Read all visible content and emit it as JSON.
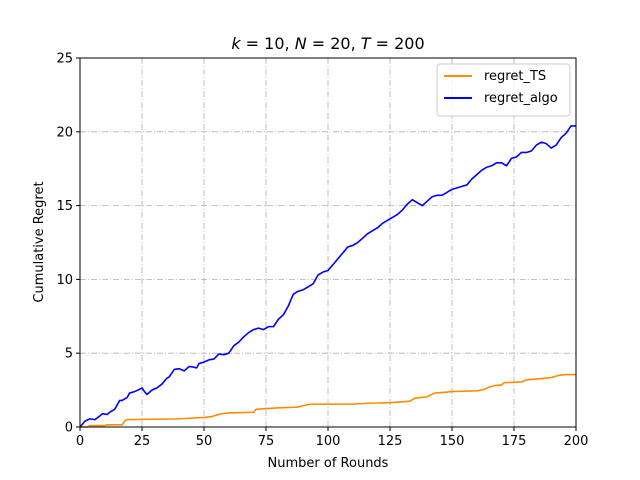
{
  "chart_data": {
    "type": "line",
    "title": "k = 10, N = 20, T = 200",
    "title_parts": {
      "k": "k",
      "k_eq": " = 10, ",
      "N": "N",
      "N_eq": " = 20, ",
      "T": "T",
      "T_eq": " = 200"
    },
    "xlabel": "Number of Rounds",
    "ylabel": "Cumulative Regret",
    "xlim": [
      0,
      200
    ],
    "ylim": [
      0,
      25
    ],
    "xticks": [
      0,
      25,
      50,
      75,
      100,
      125,
      150,
      175,
      200
    ],
    "yticks": [
      0,
      5,
      10,
      15,
      20,
      25
    ],
    "grid": true,
    "legend_position": "top-right",
    "series": [
      {
        "name": "regret_TS",
        "color": "#ff8c00",
        "points": [
          [
            0,
            0
          ],
          [
            3,
            0
          ],
          [
            4,
            0.1
          ],
          [
            10,
            0.1
          ],
          [
            11,
            0.15
          ],
          [
            17,
            0.15
          ],
          [
            18,
            0.4
          ],
          [
            19,
            0.5
          ],
          [
            40,
            0.55
          ],
          [
            50,
            0.65
          ],
          [
            53,
            0.7
          ],
          [
            55,
            0.8
          ],
          [
            57,
            0.9
          ],
          [
            60,
            0.95
          ],
          [
            70,
            1.0
          ],
          [
            71,
            1.2
          ],
          [
            80,
            1.3
          ],
          [
            88,
            1.35
          ],
          [
            90,
            1.45
          ],
          [
            93,
            1.55
          ],
          [
            110,
            1.55
          ],
          [
            115,
            1.6
          ],
          [
            125,
            1.65
          ],
          [
            133,
            1.75
          ],
          [
            135,
            1.95
          ],
          [
            140,
            2.05
          ],
          [
            143,
            2.3
          ],
          [
            147,
            2.35
          ],
          [
            150,
            2.4
          ],
          [
            160,
            2.45
          ],
          [
            163,
            2.55
          ],
          [
            165,
            2.7
          ],
          [
            167,
            2.8
          ],
          [
            170,
            2.85
          ],
          [
            171,
            3.0
          ],
          [
            178,
            3.05
          ],
          [
            180,
            3.2
          ],
          [
            184,
            3.25
          ],
          [
            190,
            3.35
          ],
          [
            193,
            3.5
          ],
          [
            196,
            3.55
          ],
          [
            200,
            3.55
          ]
        ]
      },
      {
        "name": "regret_algo",
        "color": "#0000ff",
        "points": [
          [
            0,
            0
          ],
          [
            2,
            0.4
          ],
          [
            4,
            0.55
          ],
          [
            6,
            0.5
          ],
          [
            8,
            0.75
          ],
          [
            9,
            0.9
          ],
          [
            11,
            0.85
          ],
          [
            12,
            1.0
          ],
          [
            14,
            1.2
          ],
          [
            16,
            1.8
          ],
          [
            17,
            1.8
          ],
          [
            19,
            2.0
          ],
          [
            20,
            2.3
          ],
          [
            22,
            2.4
          ],
          [
            24,
            2.55
          ],
          [
            25,
            2.65
          ],
          [
            26,
            2.4
          ],
          [
            27,
            2.2
          ],
          [
            29,
            2.5
          ],
          [
            31,
            2.65
          ],
          [
            33,
            2.9
          ],
          [
            35,
            3.3
          ],
          [
            36,
            3.4
          ],
          [
            38,
            3.9
          ],
          [
            40,
            3.95
          ],
          [
            42,
            3.8
          ],
          [
            44,
            4.1
          ],
          [
            46,
            4.05
          ],
          [
            47,
            4.0
          ],
          [
            48,
            4.3
          ],
          [
            50,
            4.4
          ],
          [
            52,
            4.55
          ],
          [
            54,
            4.6
          ],
          [
            56,
            4.95
          ],
          [
            58,
            4.9
          ],
          [
            60,
            5.0
          ],
          [
            62,
            5.5
          ],
          [
            64,
            5.75
          ],
          [
            66,
            6.1
          ],
          [
            68,
            6.4
          ],
          [
            70,
            6.6
          ],
          [
            72,
            6.7
          ],
          [
            74,
            6.6
          ],
          [
            76,
            6.8
          ],
          [
            78,
            6.8
          ],
          [
            80,
            7.3
          ],
          [
            82,
            7.6
          ],
          [
            84,
            8.2
          ],
          [
            86,
            9.0
          ],
          [
            88,
            9.2
          ],
          [
            90,
            9.3
          ],
          [
            92,
            9.5
          ],
          [
            94,
            9.7
          ],
          [
            96,
            10.3
          ],
          [
            98,
            10.5
          ],
          [
            100,
            10.6
          ],
          [
            102,
            11.0
          ],
          [
            104,
            11.4
          ],
          [
            106,
            11.8
          ],
          [
            108,
            12.2
          ],
          [
            110,
            12.3
          ],
          [
            112,
            12.5
          ],
          [
            114,
            12.8
          ],
          [
            116,
            13.1
          ],
          [
            118,
            13.3
          ],
          [
            120,
            13.5
          ],
          [
            122,
            13.8
          ],
          [
            124,
            14.0
          ],
          [
            126,
            14.2
          ],
          [
            128,
            14.4
          ],
          [
            130,
            14.7
          ],
          [
            132,
            15.1
          ],
          [
            134,
            15.4
          ],
          [
            136,
            15.2
          ],
          [
            138,
            15.0
          ],
          [
            140,
            15.3
          ],
          [
            142,
            15.6
          ],
          [
            144,
            15.7
          ],
          [
            146,
            15.7
          ],
          [
            148,
            15.9
          ],
          [
            150,
            16.1
          ],
          [
            152,
            16.2
          ],
          [
            154,
            16.3
          ],
          [
            156,
            16.4
          ],
          [
            158,
            16.8
          ],
          [
            160,
            17.1
          ],
          [
            162,
            17.4
          ],
          [
            164,
            17.6
          ],
          [
            166,
            17.7
          ],
          [
            168,
            17.9
          ],
          [
            170,
            17.9
          ],
          [
            172,
            17.7
          ],
          [
            174,
            18.2
          ],
          [
            176,
            18.3
          ],
          [
            178,
            18.6
          ],
          [
            180,
            18.6
          ],
          [
            182,
            18.7
          ],
          [
            184,
            19.1
          ],
          [
            186,
            19.3
          ],
          [
            188,
            19.2
          ],
          [
            190,
            18.9
          ],
          [
            192,
            19.1
          ],
          [
            194,
            19.6
          ],
          [
            196,
            19.9
          ],
          [
            198,
            20.4
          ],
          [
            200,
            20.4
          ]
        ]
      }
    ]
  }
}
